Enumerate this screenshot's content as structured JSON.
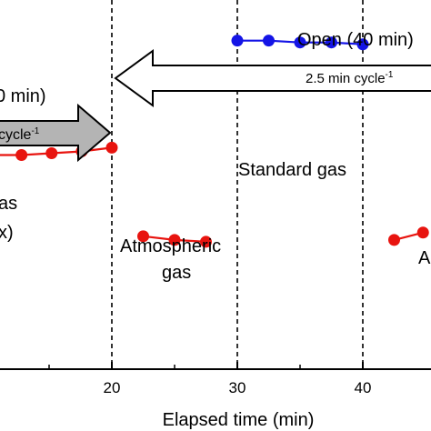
{
  "chart_data": {
    "type": "line",
    "xlabel": "Elapsed time (min)",
    "ylabel": "",
    "title": "",
    "xlim": [
      7.9,
      44.5
    ],
    "ylim": [
      0,
      1
    ],
    "x_ticks": [
      20,
      30,
      40
    ],
    "x_tick_labels": [
      "20",
      "30",
      "40"
    ],
    "vertical_dashed_lines": [
      20,
      30,
      40
    ],
    "grid": false,
    "series": [
      {
        "color": "#e8140f",
        "segments": [
          {
            "x": [
              8.0,
              10.4,
              12.8,
              15.2,
              17.6,
              20.0
            ],
            "y": [
              0.57,
              0.58,
              0.58,
              0.585,
              0.59,
              0.6
            ]
          },
          {
            "x": [
              22.5,
              25.0,
              27.5
            ],
            "y": [
              0.36,
              0.35,
              0.345
            ]
          },
          {
            "x": [
              42.5,
              44.8
            ],
            "y": [
              0.35,
              0.37
            ]
          }
        ]
      },
      {
        "color": "#1414e6",
        "segments": [
          {
            "x": [
              30.0,
              32.5,
              35.0,
              37.5,
              40.0
            ],
            "y": [
              0.89,
              0.89,
              0.885,
              0.885,
              0.88
            ]
          }
        ]
      }
    ],
    "arrows": [
      {
        "direction": "left",
        "fill": "#ffffff",
        "from": 20,
        "to": 44.5,
        "label": "2.5 min cycle",
        "label_sup": "-1"
      },
      {
        "direction": "right",
        "fill": "#b4b4b4",
        "from": 7.9,
        "to": 20,
        "label": "cycle",
        "label_sup": "-1"
      }
    ],
    "annotations": [
      {
        "id": "open",
        "text": "Open (40 min)"
      },
      {
        "id": "closed-partial",
        "text": "0 min)"
      },
      {
        "id": "standard-gas",
        "text": "Standard gas"
      },
      {
        "id": "atmospheric-gas-line1",
        "text": "Atmospheric"
      },
      {
        "id": "atmospheric-gas-line2",
        "text": "gas"
      },
      {
        "id": "gas-partial",
        "text": "as"
      },
      {
        "id": "x-partial",
        "text": "x)"
      },
      {
        "id": "a-partial",
        "text": "A"
      }
    ]
  }
}
